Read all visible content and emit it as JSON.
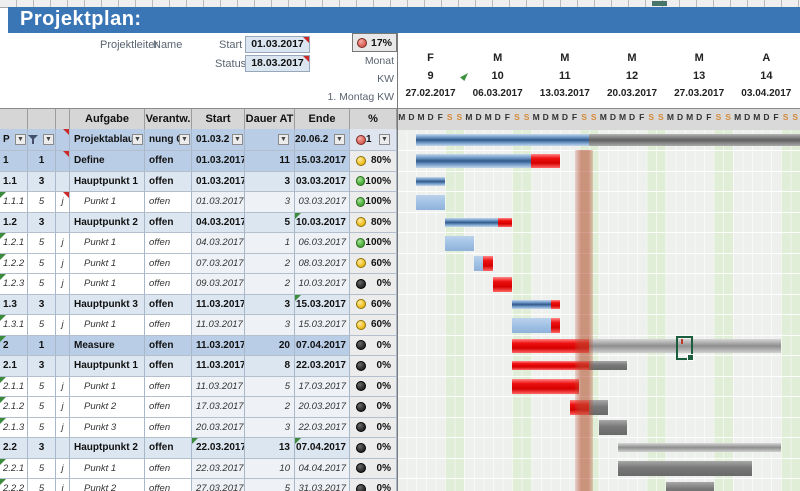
{
  "title": "Projektplan:",
  "header": {
    "projektleiter_label": "Projektleiter",
    "projektleiter_value": "Name",
    "start_label": "Start",
    "start_value": "01.03.2017",
    "status_label": "Status",
    "status_value": "18.03.2017",
    "progress_value": "17%",
    "monat_label": "Monat",
    "kw_label": "KW",
    "montag_label": "1. Montag KW"
  },
  "timeline": {
    "weeks": [
      {
        "month": "F",
        "kw": "9",
        "date": "27.02.2017"
      },
      {
        "month": "M",
        "kw": "10",
        "date": "06.03.2017"
      },
      {
        "month": "M",
        "kw": "11",
        "date": "13.03.2017"
      },
      {
        "month": "M",
        "kw": "12",
        "date": "20.03.2017"
      },
      {
        "month": "M",
        "kw": "13",
        "date": "27.03.2017"
      },
      {
        "month": "A",
        "kw": "14",
        "date": "03.04.2017"
      }
    ],
    "day_letters": [
      "M",
      "D",
      "M",
      "D",
      "F",
      "S",
      "S"
    ],
    "status_line_days": [
      18.6,
      20.4
    ]
  },
  "colors": {
    "title_bar": "#3a75b6",
    "row_level1": "#b9cde6",
    "row_level2": "#dce6f1",
    "weekend": "#e1eed7",
    "status_line": "#b74a32",
    "bar_blue": "#31598a",
    "bar_lightblue": "#a3c3e6",
    "bar_red": "#e01111",
    "bar_gray": "#787878"
  },
  "table": {
    "columns": [
      "Aufgabe",
      "Verantw.",
      "Start",
      "Dauer AT",
      "Ende",
      "%"
    ],
    "filter_row": {
      "a": "P",
      "d": "Projektablauf",
      "e": "nung Ge",
      "f": "01.03.2",
      "g": "",
      "h": "20.06.2",
      "i": "1",
      "ampel": "red"
    },
    "project_bar": [
      [
        "blue",
        2,
        20
      ],
      [
        "graydark",
        20,
        42
      ]
    ],
    "rows": [
      {
        "id": "1",
        "prio": "1",
        "j": "",
        "name": "Define",
        "status": "offen",
        "start": "01.03.2017",
        "dauer": "11",
        "ende": "15.03.2017",
        "pct": "80%",
        "ampel": "yellow",
        "level": 1,
        "corner_a": false,
        "corner_c": true,
        "corner_f": false,
        "corner_h": false,
        "segments": [
          [
            "blue",
            2,
            14
          ],
          [
            "red",
            14,
            17
          ]
        ]
      },
      {
        "id": "1.1",
        "prio": "3",
        "j": "",
        "name": "Hauptpunkt 1",
        "status": "offen",
        "start": "01.03.2017",
        "dauer": "3",
        "ende": "03.03.2017",
        "pct": "100%",
        "ampel": "green",
        "level": 2,
        "corner_a": false,
        "corner_c": false,
        "corner_f": false,
        "corner_h": false,
        "segments": [
          [
            "blue",
            2,
            5
          ]
        ]
      },
      {
        "id": "1.1.1",
        "prio": "5",
        "j": "j",
        "name": "Punkt 1",
        "status": "offen",
        "start": "01.03.2017",
        "dauer": "3",
        "ende": "03.03.2017",
        "pct": "100%",
        "ampel": "green",
        "level": 3,
        "corner_a": true,
        "corner_c": true,
        "corner_f": false,
        "corner_h": false,
        "segments": [
          [
            "lightblue",
            2,
            5
          ]
        ]
      },
      {
        "id": "1.2",
        "prio": "3",
        "j": "",
        "name": "Hauptpunkt 2",
        "status": "offen",
        "start": "04.03.2017",
        "dauer": "5",
        "ende": "10.03.2017",
        "pct": "80%",
        "ampel": "yellow",
        "level": 2,
        "corner_a": false,
        "corner_c": false,
        "corner_f": false,
        "corner_h": true,
        "segments": [
          [
            "blue",
            5,
            10.5
          ],
          [
            "red",
            10.5,
            12
          ]
        ]
      },
      {
        "id": "1.2.1",
        "prio": "5",
        "j": "j",
        "name": "Punkt 1",
        "status": "offen",
        "start": "04.03.2017",
        "dauer": "1",
        "ende": "06.03.2017",
        "pct": "100%",
        "ampel": "green",
        "level": 3,
        "corner_a": true,
        "corner_c": false,
        "corner_f": false,
        "corner_h": false,
        "segments": [
          [
            "lightblue",
            5,
            8
          ]
        ]
      },
      {
        "id": "1.2.2",
        "prio": "5",
        "j": "j",
        "name": "Punkt 1",
        "status": "offen",
        "start": "07.03.2017",
        "dauer": "2",
        "ende": "08.03.2017",
        "pct": "60%",
        "ampel": "yellow",
        "level": 3,
        "corner_a": true,
        "corner_c": false,
        "corner_f": false,
        "corner_h": false,
        "segments": [
          [
            "lightblue",
            8,
            9
          ],
          [
            "red",
            9,
            10
          ]
        ]
      },
      {
        "id": "1.2.3",
        "prio": "5",
        "j": "j",
        "name": "Punkt 1",
        "status": "offen",
        "start": "09.03.2017",
        "dauer": "2",
        "ende": "10.03.2017",
        "pct": "0%",
        "ampel": "black",
        "level": 3,
        "corner_a": true,
        "corner_c": false,
        "corner_f": false,
        "corner_h": false,
        "segments": [
          [
            "red",
            10,
            12
          ]
        ]
      },
      {
        "id": "1.3",
        "prio": "3",
        "j": "",
        "name": "Hauptpunkt 3",
        "status": "offen",
        "start": "11.03.2017",
        "dauer": "3",
        "ende": "15.03.2017",
        "pct": "60%",
        "ampel": "yellow",
        "level": 2,
        "corner_a": false,
        "corner_c": false,
        "corner_f": false,
        "corner_h": true,
        "segments": [
          [
            "blue",
            12,
            16
          ],
          [
            "red",
            16,
            17
          ]
        ]
      },
      {
        "id": "1.3.1",
        "prio": "5",
        "j": "j",
        "name": "Punkt 1",
        "status": "offen",
        "start": "11.03.2017",
        "dauer": "3",
        "ende": "15.03.2017",
        "pct": "60%",
        "ampel": "yellow",
        "level": 3,
        "corner_a": true,
        "corner_c": false,
        "corner_f": false,
        "corner_h": false,
        "segments": [
          [
            "lightblue",
            12,
            16
          ],
          [
            "red",
            16,
            17
          ]
        ]
      },
      {
        "id": "2",
        "prio": "1",
        "j": "",
        "name": "Measure",
        "status": "offen",
        "start": "11.03.2017",
        "dauer": "20",
        "ende": "07.04.2017",
        "pct": "0%",
        "ampel": "black",
        "level": 1,
        "corner_a": true,
        "corner_c": false,
        "corner_f": false,
        "corner_h": false,
        "segments": [
          [
            "red",
            12,
            20
          ],
          [
            "graylight",
            20,
            40
          ]
        ]
      },
      {
        "id": "2.1",
        "prio": "3",
        "j": "",
        "name": "Hauptpunkt 1",
        "status": "offen",
        "start": "11.03.2017",
        "dauer": "8",
        "ende": "22.03.2017",
        "pct": "0%",
        "ampel": "black",
        "level": 2,
        "corner_a": false,
        "corner_c": false,
        "corner_f": false,
        "corner_h": false,
        "segments": [
          [
            "red",
            12,
            20
          ],
          [
            "gray",
            20,
            24
          ]
        ]
      },
      {
        "id": "2.1.1",
        "prio": "5",
        "j": "j",
        "name": "Punkt 1",
        "status": "offen",
        "start": "11.03.2017",
        "dauer": "5",
        "ende": "17.03.2017",
        "pct": "0%",
        "ampel": "black",
        "level": 3,
        "corner_a": true,
        "corner_c": false,
        "corner_f": false,
        "corner_h": false,
        "segments": [
          [
            "red",
            12,
            19
          ]
        ]
      },
      {
        "id": "2.1.2",
        "prio": "5",
        "j": "j",
        "name": "Punkt 2",
        "status": "offen",
        "start": "17.03.2017",
        "dauer": "2",
        "ende": "20.03.2017",
        "pct": "0%",
        "ampel": "black",
        "level": 3,
        "corner_a": true,
        "corner_c": false,
        "corner_f": false,
        "corner_h": false,
        "segments": [
          [
            "red",
            18,
            20
          ],
          [
            "gray",
            20,
            22
          ]
        ]
      },
      {
        "id": "2.1.3",
        "prio": "5",
        "j": "j",
        "name": "Punkt 3",
        "status": "offen",
        "start": "20.03.2017",
        "dauer": "3",
        "ende": "22.03.2017",
        "pct": "0%",
        "ampel": "black",
        "level": 3,
        "corner_a": true,
        "corner_c": false,
        "corner_f": false,
        "corner_h": false,
        "segments": [
          [
            "gray",
            21,
            24
          ]
        ]
      },
      {
        "id": "2.2",
        "prio": "3",
        "j": "",
        "name": "Hauptpunkt 2",
        "status": "offen",
        "start": "22.03.2017",
        "dauer": "13",
        "ende": "07.04.2017",
        "pct": "0%",
        "ampel": "black",
        "level": 2,
        "corner_a": false,
        "corner_c": false,
        "corner_f": true,
        "corner_h": true,
        "segments": [
          [
            "graylight",
            23,
            40
          ]
        ]
      },
      {
        "id": "2.2.1",
        "prio": "5",
        "j": "j",
        "name": "Punkt 1",
        "status": "offen",
        "start": "22.03.2017",
        "dauer": "10",
        "ende": "04.04.2017",
        "pct": "0%",
        "ampel": "black",
        "level": 3,
        "corner_a": true,
        "corner_c": false,
        "corner_f": false,
        "corner_h": false,
        "segments": [
          [
            "gray",
            23,
            37
          ]
        ]
      },
      {
        "id": "2.2.2",
        "prio": "5",
        "j": "j",
        "name": "Punkt 2",
        "status": "offen",
        "start": "27.03.2017",
        "dauer": "5",
        "ende": "31.03.2017",
        "pct": "0%",
        "ampel": "black",
        "level": 3,
        "corner_a": true,
        "corner_c": false,
        "corner_f": false,
        "corner_h": false,
        "segments": [
          [
            "gray",
            28,
            33
          ]
        ]
      }
    ]
  }
}
